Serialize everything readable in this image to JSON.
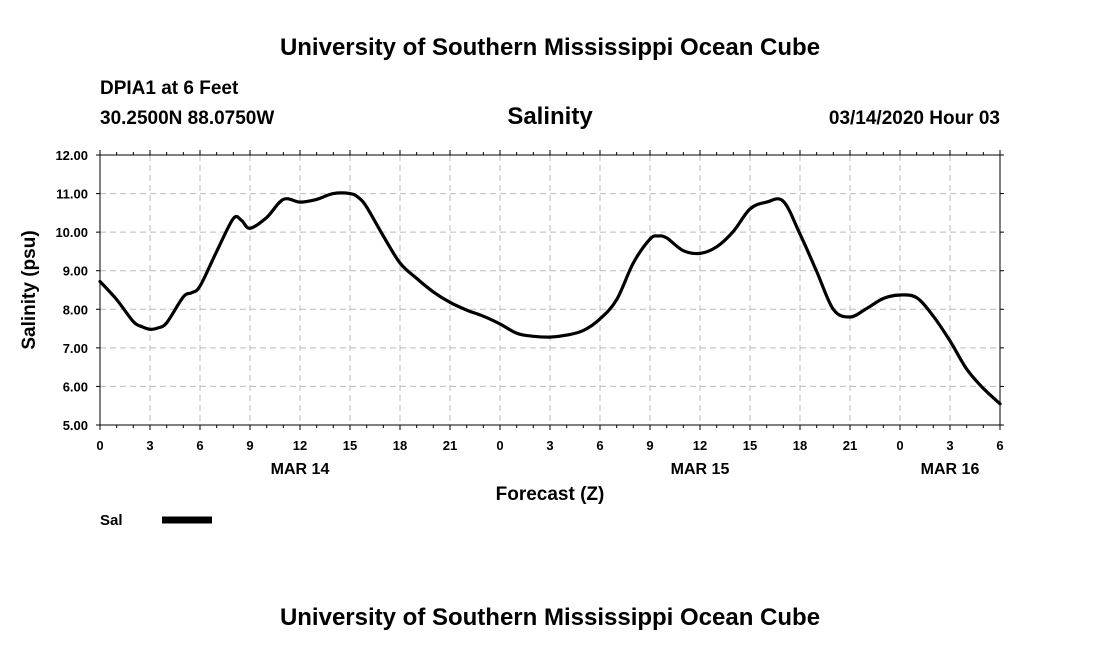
{
  "header": {
    "title": "University of Southern Mississippi Ocean Cube",
    "station": "DPIA1 at 6 Feet",
    "coords": "30.2500N 88.0750W",
    "timestamp": "03/14/2020 Hour 03"
  },
  "footer": {
    "title": "University of Southern Mississippi Ocean Cube"
  },
  "colors": {
    "line": "#000000",
    "grid": "#bbbbbb",
    "background": "#ffffff"
  },
  "chart_data": {
    "type": "line",
    "title": "Salinity",
    "xlabel": "Forecast (Z)",
    "ylabel": "Salinity (psu)",
    "ylim": [
      5.0,
      12.0
    ],
    "y_ticks": [
      "5.00",
      "6.00",
      "7.00",
      "8.00",
      "9.00",
      "10.00",
      "11.00",
      "12.00"
    ],
    "x_range_hours": [
      0,
      54
    ],
    "x_ticks": [
      "0",
      "3",
      "6",
      "9",
      "12",
      "15",
      "18",
      "21",
      "0",
      "3",
      "6",
      "9",
      "12",
      "15",
      "18",
      "21",
      "0",
      "3",
      "6"
    ],
    "date_labels": [
      {
        "label": "MAR 14",
        "hour": 12
      },
      {
        "label": "MAR 15",
        "hour": 36
      },
      {
        "label": "MAR 16",
        "hour": 51
      }
    ],
    "grid": true,
    "legend_position": "bottom-left",
    "series": [
      {
        "name": "Sal",
        "x": [
          0,
          1,
          2,
          2.5,
          3,
          3.5,
          4,
          5,
          5.5,
          6,
          7,
          8,
          8.5,
          9,
          10,
          11,
          12,
          13,
          14,
          15,
          15.5,
          16,
          17,
          18,
          19,
          20,
          21,
          22,
          23,
          24,
          25,
          26,
          27,
          28,
          29,
          30,
          31,
          32,
          33,
          33.5,
          34,
          35,
          36,
          37,
          38,
          39,
          40,
          41,
          42,
          43,
          44,
          45,
          46,
          47,
          48,
          49,
          50,
          51,
          52,
          53,
          54
        ],
        "values": [
          8.72,
          8.25,
          7.68,
          7.55,
          7.48,
          7.52,
          7.65,
          8.32,
          8.43,
          8.6,
          9.5,
          10.35,
          10.3,
          10.1,
          10.38,
          10.85,
          10.78,
          10.85,
          11.0,
          11.0,
          10.9,
          10.65,
          9.9,
          9.2,
          8.8,
          8.45,
          8.18,
          7.98,
          7.82,
          7.62,
          7.38,
          7.3,
          7.28,
          7.33,
          7.45,
          7.75,
          8.25,
          9.2,
          9.82,
          9.9,
          9.85,
          9.52,
          9.45,
          9.62,
          10.02,
          10.6,
          10.78,
          10.8,
          9.95,
          8.98,
          8.0,
          7.8,
          8.02,
          8.28,
          8.37,
          8.3,
          7.82,
          7.18,
          6.45,
          5.95,
          5.55
        ]
      }
    ]
  }
}
